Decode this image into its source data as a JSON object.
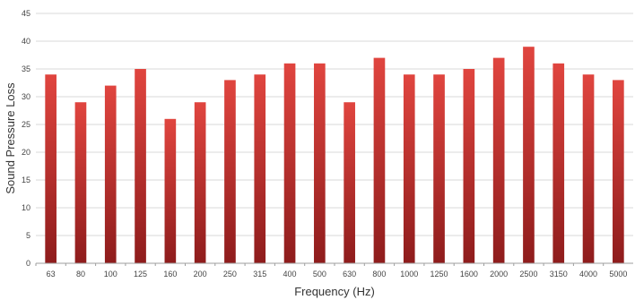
{
  "chart_data": {
    "type": "bar",
    "title": "",
    "xlabel": "Frequency (Hz)",
    "ylabel": "Sound Pressure Loss",
    "ylim": [
      0,
      45
    ],
    "yticks": [
      0,
      5,
      10,
      15,
      20,
      25,
      30,
      35,
      40,
      45
    ],
    "grid": true,
    "categories": [
      "63",
      "80",
      "100",
      "125",
      "160",
      "200",
      "250",
      "315",
      "400",
      "500",
      "630",
      "800",
      "1000",
      "1250",
      "1600",
      "2000",
      "2500",
      "3150",
      "4000",
      "5000"
    ],
    "values": [
      34,
      29,
      32,
      35,
      26,
      29,
      33,
      34,
      36,
      36,
      29,
      37,
      34,
      34,
      35,
      37,
      39,
      36,
      34,
      33
    ],
    "bar_color_top": "#e0453f",
    "bar_color_bottom": "#8e1c1c",
    "grid_color": "#d9d9d9",
    "axis_color": "#9e9e9e"
  }
}
